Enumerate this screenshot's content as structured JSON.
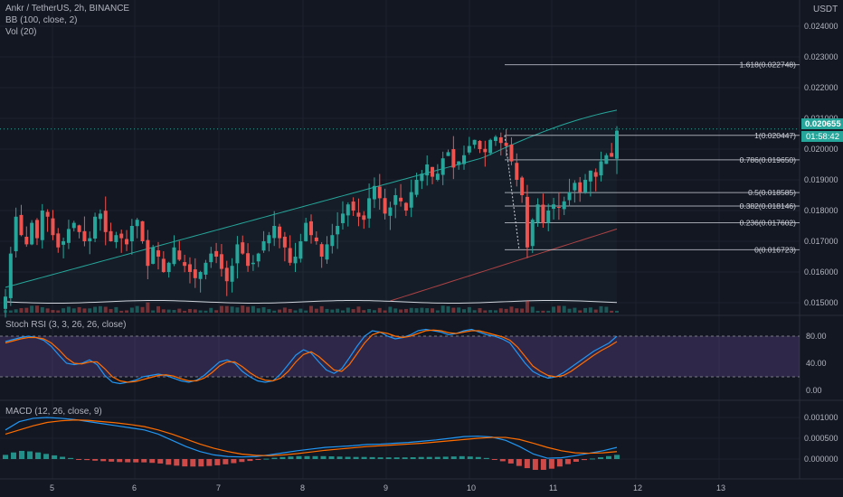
{
  "header": {
    "symbol_line": "Ankr / TetherUS, 2h, BINANCE",
    "bb_line": "BB (100, close, 2)",
    "vol_line": "Vol (20)",
    "currency": "USDT"
  },
  "price_badge": {
    "price": "0.020655",
    "countdown": "01:58:42",
    "color": "#26a69a"
  },
  "colors": {
    "up": "#26a69a",
    "down": "#ef5350",
    "bb": "#26a69a",
    "ma": "#ef5350",
    "macd": "#2196f3",
    "signal": "#ff6d00",
    "rsi_k": "#2196f3",
    "rsi_d": "#ff6d00",
    "rsi_band": "#7e57c2"
  },
  "chart_data": [
    {
      "type": "candlestick",
      "title": "Ankr / TetherUS, 2h, BINANCE",
      "x_ticks": [
        "5",
        "6",
        "7",
        "8",
        "9",
        "10",
        "11",
        "12",
        "13"
      ],
      "y_ticks": [
        "0.024000",
        "0.023000",
        "0.022000",
        "0.021000",
        "0.020000",
        "0.019000",
        "0.018000",
        "0.017000",
        "0.016000",
        "0.015000"
      ],
      "ylim": [
        0.0148,
        0.0245
      ],
      "y_unit": "USDT",
      "last_price": 0.020655,
      "fib_levels": [
        {
          "label": "1.618(0.022748)",
          "value": 0.022748
        },
        {
          "label": "1(0.020447)",
          "value": 0.020447
        },
        {
          "label": "0.786(0.019650)",
          "value": 0.01965
        },
        {
          "label": "0.5(0.018585)",
          "value": 0.018585
        },
        {
          "label": "0.382(0.018146)",
          "value": 0.018146
        },
        {
          "label": "0.236(0.017602)",
          "value": 0.017602
        },
        {
          "label": "0(0.016723)",
          "value": 0.016723
        }
      ],
      "closes": [
        0.0152,
        0.0166,
        0.0178,
        0.0172,
        0.0169,
        0.0176,
        0.0171,
        0.018,
        0.0178,
        0.0172,
        0.0168,
        0.017,
        0.0174,
        0.0176,
        0.0173,
        0.017,
        0.0171,
        0.0178,
        0.0179,
        0.0173,
        0.017,
        0.0172,
        0.0171,
        0.0169,
        0.0175,
        0.0177,
        0.017,
        0.0162,
        0.0168,
        0.0165,
        0.016,
        0.0163,
        0.0168,
        0.0164,
        0.0162,
        0.016,
        0.0158,
        0.016,
        0.0163,
        0.0166,
        0.0165,
        0.0161,
        0.0157,
        0.0162,
        0.0169,
        0.0166,
        0.0162,
        0.0163,
        0.0166,
        0.017,
        0.0172,
        0.0175,
        0.0171,
        0.0168,
        0.0163,
        0.0165,
        0.017,
        0.0176,
        0.0172,
        0.017,
        0.0165,
        0.0169,
        0.0172,
        0.0175,
        0.0179,
        0.0182,
        0.018,
        0.0178,
        0.0177,
        0.0184,
        0.0188,
        0.0184,
        0.0179,
        0.0181,
        0.0185,
        0.0183,
        0.018,
        0.0186,
        0.019,
        0.0192,
        0.0195,
        0.0191,
        0.0192,
        0.0197,
        0.0199,
        0.0194,
        0.0196,
        0.0198,
        0.0201,
        0.0203,
        0.02,
        0.0199,
        0.0203,
        0.0204,
        0.0202,
        0.0201,
        0.0196,
        0.019,
        0.0185,
        0.0168,
        0.0177,
        0.0182,
        0.0176,
        0.018,
        0.0182,
        0.0181,
        0.0183,
        0.0186,
        0.0189,
        0.0186,
        0.019,
        0.0193,
        0.0191,
        0.0196,
        0.0198,
        0.01975,
        0.0206
      ],
      "volume_note": "small bars along bottom of price pane"
    },
    {
      "type": "line",
      "title": "Stoch RSI (3, 3, 26, 26, close)",
      "y_ticks": [
        "80.00",
        "40.00",
        "0.00"
      ],
      "ylim": [
        -2,
        95
      ],
      "band": [
        20,
        80
      ],
      "series": [
        {
          "name": "K",
          "values": [
            72,
            75,
            78,
            80,
            78,
            74,
            65,
            52,
            40,
            38,
            40,
            45,
            38,
            22,
            12,
            10,
            12,
            15,
            20,
            22,
            24,
            22,
            18,
            14,
            12,
            15,
            22,
            32,
            42,
            45,
            40,
            28,
            20,
            14,
            12,
            14,
            24,
            38,
            52,
            60,
            55,
            42,
            30,
            25,
            32,
            48,
            65,
            80,
            88,
            86,
            80,
            76,
            78,
            82,
            88,
            90,
            88,
            86,
            82,
            84,
            88,
            90,
            86,
            82,
            80,
            76,
            70,
            55,
            40,
            28,
            22,
            18,
            20,
            26,
            34,
            42,
            50,
            58,
            64,
            70,
            80
          ]
        },
        {
          "name": "D",
          "values": [
            70,
            73,
            76,
            78,
            78,
            76,
            70,
            60,
            48,
            40,
            39,
            42,
            42,
            32,
            20,
            14,
            12,
            13,
            16,
            19,
            22,
            23,
            21,
            17,
            14,
            14,
            18,
            26,
            36,
            42,
            42,
            35,
            26,
            19,
            15,
            14,
            18,
            28,
            42,
            53,
            57,
            50,
            40,
            30,
            28,
            38,
            54,
            70,
            82,
            86,
            84,
            80,
            78,
            80,
            84,
            88,
            89,
            88,
            85,
            84,
            86,
            88,
            88,
            85,
            82,
            79,
            74,
            64,
            50,
            36,
            28,
            22,
            20,
            22,
            28,
            36,
            44,
            52,
            59,
            65,
            72
          ]
        }
      ]
    },
    {
      "type": "line",
      "title": "MACD (12, 26, close, 9)",
      "y_ticks": [
        "0.001000",
        "0.000500",
        "0.000000"
      ],
      "ylim": [
        -0.00022,
        0.00118
      ],
      "series": [
        {
          "name": "MACD",
          "values": [
            0.0007,
            0.0009,
            0.00098,
            0.001,
            0.00098,
            0.00095,
            0.0009,
            0.00085,
            0.0008,
            0.00075,
            0.0007,
            0.0006,
            0.00045,
            0.0003,
            0.00018,
            0.0001,
            6e-05,
            5e-05,
            6e-05,
            0.0001,
            0.00015,
            0.0002,
            0.00024,
            0.00028,
            0.0003,
            0.00032,
            0.00035,
            0.00036,
            0.00038,
            0.0004,
            0.00043,
            0.00046,
            0.0005,
            0.00054,
            0.00055,
            0.00053,
            0.00045,
            0.0003,
            0.00012,
            2e-05,
            3e-05,
            8e-05,
            0.00014,
            0.0002,
            0.00028
          ]
        },
        {
          "name": "Signal",
          "values": [
            0.0006,
            0.0007,
            0.0008,
            0.00088,
            0.00092,
            0.00094,
            0.00093,
            0.0009,
            0.00087,
            0.00083,
            0.00078,
            0.0007,
            0.0006,
            0.00048,
            0.00036,
            0.00026,
            0.00018,
            0.00012,
            9e-05,
            8e-05,
            0.0001,
            0.00013,
            0.00017,
            0.00021,
            0.00024,
            0.00027,
            0.0003,
            0.00032,
            0.00034,
            0.00036,
            0.00038,
            0.00041,
            0.00044,
            0.00047,
            0.0005,
            0.00052,
            0.00052,
            0.00047,
            0.00038,
            0.00028,
            0.0002,
            0.00015,
            0.00014,
            0.00015,
            0.00018
          ]
        }
      ]
    }
  ]
}
